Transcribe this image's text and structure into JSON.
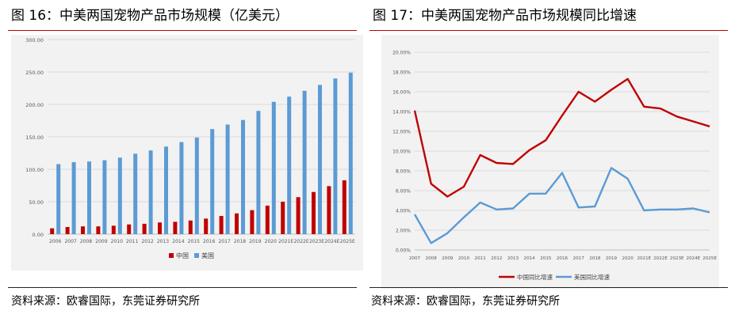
{
  "figures": [
    {
      "title": "图 16：中美两国宠物产品市场规模（亿美元）",
      "source": "资料来源：欧睿国际，东莞证券研究所"
    },
    {
      "title": "图 17：中美两国宠物产品市场规模同比增速",
      "source": "资料来源：欧睿国际，东莞证券研究所"
    }
  ],
  "colors": {
    "china": "#c00000",
    "usa": "#5b9bd5",
    "rule": "#c00000"
  },
  "chart_data": [
    {
      "type": "bar",
      "title": "中美两国宠物产品市场规模（亿美元）",
      "categories": [
        "2006",
        "2007",
        "2008",
        "2009",
        "2010",
        "2011",
        "2012",
        "2013",
        "2014",
        "2015",
        "2016",
        "2017",
        "2018",
        "2019",
        "2020",
        "2021E",
        "2022E",
        "2023E",
        "2024E",
        "2025E"
      ],
      "series": [
        {
          "name": "中国",
          "values": [
            9,
            11,
            12,
            12,
            13,
            15,
            16,
            18,
            19,
            21,
            24,
            28,
            32,
            37,
            44,
            50,
            57,
            65,
            74,
            83
          ]
        },
        {
          "name": "美国",
          "values": [
            108,
            111,
            112,
            114,
            118,
            124,
            129,
            135,
            142,
            149,
            162,
            169,
            176,
            190,
            204,
            212,
            221,
            230,
            240,
            249
          ]
        }
      ],
      "yticks": [
        "0.00",
        "50.00",
        "100.00",
        "150.00",
        "200.00",
        "250.00",
        "300.00"
      ],
      "ylim": [
        0,
        300
      ],
      "legend_position": "bottom"
    },
    {
      "type": "line",
      "title": "中美两国宠物产品市场规模同比增速",
      "categories": [
        "2007",
        "2008",
        "2009",
        "2010",
        "2011",
        "2012",
        "2013",
        "2014",
        "2015",
        "2016",
        "2017",
        "2018",
        "2019",
        "2020",
        "2021E",
        "2022E",
        "2023E",
        "2024E",
        "2025E"
      ],
      "series": [
        {
          "name": "中国同比增速",
          "values": [
            14.1,
            6.7,
            5.4,
            6.4,
            9.6,
            8.8,
            8.7,
            10.1,
            11.1,
            13.6,
            16.0,
            15.0,
            16.2,
            17.3,
            14.5,
            14.3,
            13.5,
            13.0,
            12.5
          ]
        },
        {
          "name": "美国同比增速",
          "values": [
            3.6,
            0.7,
            1.7,
            3.3,
            4.8,
            4.1,
            4.2,
            5.7,
            5.7,
            7.8,
            4.3,
            4.4,
            8.3,
            7.2,
            4.0,
            4.1,
            4.1,
            4.2,
            3.8
          ]
        }
      ],
      "yticks": [
        "0.00%",
        "2.00%",
        "4.00%",
        "6.00%",
        "8.00%",
        "10.00%",
        "12.00%",
        "14.00%",
        "16.00%",
        "18.00%",
        "20.00%"
      ],
      "ylim": [
        0,
        20
      ],
      "legend_position": "bottom"
    }
  ]
}
